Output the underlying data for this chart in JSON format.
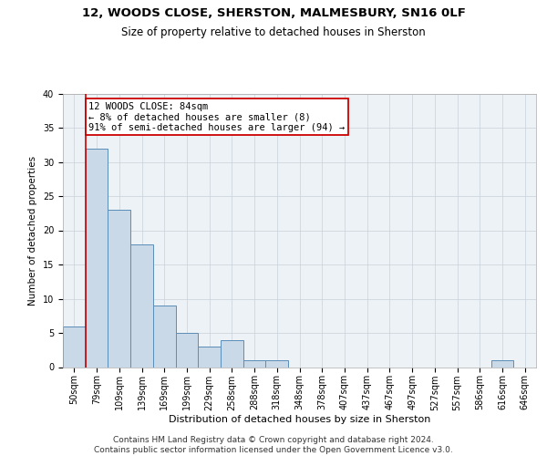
{
  "title1": "12, WOODS CLOSE, SHERSTON, MALMESBURY, SN16 0LF",
  "title2": "Size of property relative to detached houses in Sherston",
  "xlabel": "Distribution of detached houses by size in Sherston",
  "ylabel": "Number of detached properties",
  "categories": [
    "50sqm",
    "79sqm",
    "109sqm",
    "139sqm",
    "169sqm",
    "199sqm",
    "229sqm",
    "258sqm",
    "288sqm",
    "318sqm",
    "348sqm",
    "378sqm",
    "407sqm",
    "437sqm",
    "467sqm",
    "497sqm",
    "527sqm",
    "557sqm",
    "586sqm",
    "616sqm",
    "646sqm"
  ],
  "values": [
    6,
    32,
    23,
    18,
    9,
    5,
    3,
    4,
    1,
    1,
    0,
    0,
    0,
    0,
    0,
    0,
    0,
    0,
    0,
    1,
    0
  ],
  "bar_color": "#c9d9e8",
  "bar_edge_color": "#5b8db8",
  "bar_linewidth": 0.7,
  "vline_x_index": 1,
  "vline_color": "#cc0000",
  "vline_linewidth": 1.2,
  "annotation_line1": "12 WOODS CLOSE: 84sqm",
  "annotation_line2": "← 8% of detached houses are smaller (8)",
  "annotation_line3": "91% of semi-detached houses are larger (94) →",
  "annotation_box_edgecolor": "#cc0000",
  "annotation_box_facecolor": "#ffffff",
  "annotation_fontsize": 7.5,
  "ylim": [
    0,
    40
  ],
  "yticks": [
    0,
    5,
    10,
    15,
    20,
    25,
    30,
    35,
    40
  ],
  "grid_color": "#c8d0d8",
  "background_color": "#edf2f7",
  "footer_line1": "Contains HM Land Registry data © Crown copyright and database right 2024.",
  "footer_line2": "Contains public sector information licensed under the Open Government Licence v3.0.",
  "title1_fontsize": 9.5,
  "title2_fontsize": 8.5,
  "xlabel_fontsize": 8,
  "ylabel_fontsize": 7.5,
  "tick_fontsize": 7,
  "footer_fontsize": 6.5
}
